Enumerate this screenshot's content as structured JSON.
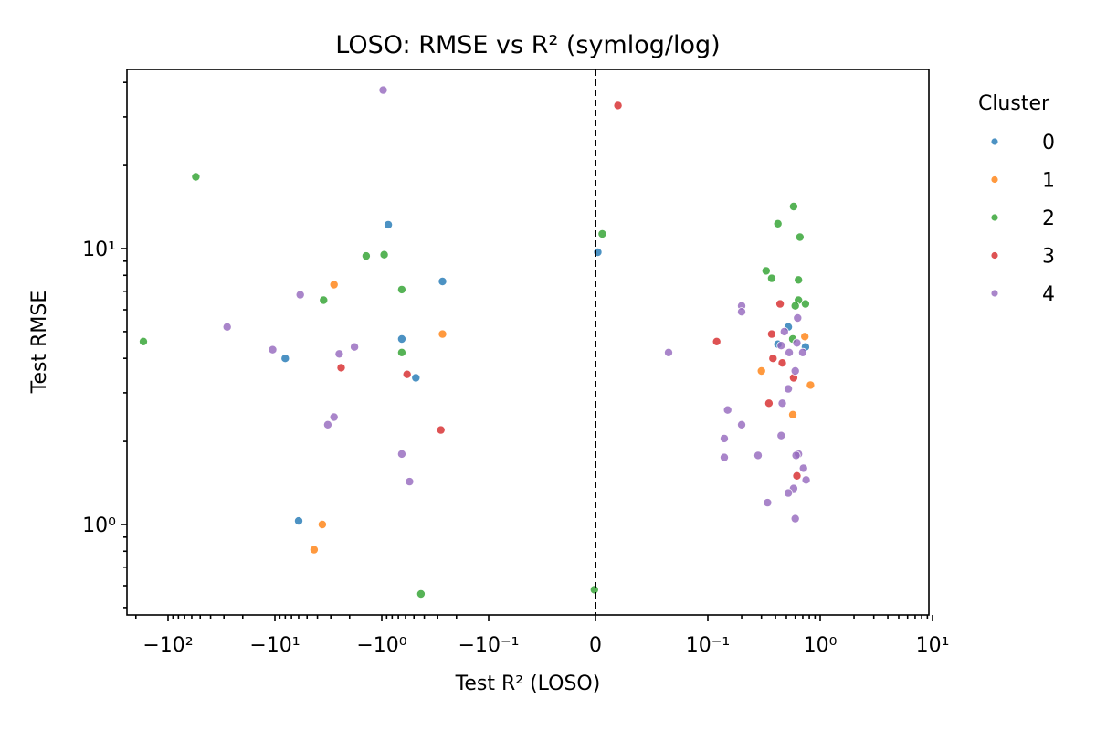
{
  "chart_data": {
    "type": "scatter",
    "title": "LOSO: RMSE vs R² (symlog/log)",
    "xlabel": "Test R² (LOSO)",
    "ylabel": "Test RMSE",
    "xscale": "symlog",
    "yscale": "log",
    "xlim": [
      -180,
      12
    ],
    "ylim": [
      0.47,
      42
    ],
    "x_ticks": [
      {
        "value": -100,
        "label": "−10²"
      },
      {
        "value": -10,
        "label": "−10¹"
      },
      {
        "value": -1,
        "label": "−10⁰"
      },
      {
        "value": -0.1,
        "label": "−10⁻¹"
      },
      {
        "value": 0,
        "label": "0"
      },
      {
        "value": 0.1,
        "label": "10⁻¹"
      },
      {
        "value": 1,
        "label": "10⁰"
      },
      {
        "value": 10,
        "label": "10¹"
      }
    ],
    "y_ticks": [
      {
        "value": 1,
        "label": "10⁰"
      },
      {
        "value": 10,
        "label": "10¹"
      }
    ],
    "reference_line": {
      "x": 0,
      "style": "dashed"
    },
    "grid": false,
    "legend": {
      "title": "Cluster",
      "placement": "outside-right"
    },
    "series": [
      {
        "name": "0",
        "color": "#1f77b4",
        "points": [
          [
            -0.87,
            12.2
          ],
          [
            -0.27,
            7.6
          ],
          [
            -0.65,
            4.7
          ],
          [
            -8.0,
            4.0
          ],
          [
            -0.48,
            3.4
          ],
          [
            -6.0,
            1.03
          ],
          [
            0.002,
            9.7
          ],
          [
            0.52,
            5.2
          ],
          [
            0.74,
            4.4
          ],
          [
            0.42,
            4.5
          ]
        ]
      },
      {
        "name": "1",
        "color": "#ff7f0e",
        "points": [
          [
            -2.8,
            7.4
          ],
          [
            -0.27,
            4.9
          ],
          [
            -3.6,
            1.0
          ],
          [
            -4.3,
            0.81
          ],
          [
            0.73,
            4.8
          ],
          [
            0.82,
            3.2
          ],
          [
            0.3,
            3.6
          ],
          [
            0.57,
            2.5
          ]
        ]
      },
      {
        "name": "2",
        "color": "#2ca02c",
        "points": [
          [
            -55,
            18.2
          ],
          [
            -170,
            4.6
          ],
          [
            -1.4,
            9.4
          ],
          [
            -0.95,
            9.5
          ],
          [
            -0.65,
            7.1
          ],
          [
            -3.5,
            6.5
          ],
          [
            -0.65,
            4.2
          ],
          [
            -0.43,
            0.56
          ],
          [
            0.006,
            11.3
          ],
          [
            -0.001,
            0.58
          ],
          [
            0.58,
            14.2
          ],
          [
            0.42,
            12.3
          ],
          [
            0.66,
            11.0
          ],
          [
            0.33,
            8.3
          ],
          [
            0.37,
            7.8
          ],
          [
            0.64,
            7.7
          ],
          [
            0.64,
            6.5
          ],
          [
            0.6,
            6.2
          ],
          [
            0.74,
            6.3
          ],
          [
            0.57,
            4.7
          ]
        ]
      },
      {
        "name": "3",
        "color": "#d62728",
        "points": [
          [
            0.02,
            33
          ],
          [
            -2.4,
            3.7
          ],
          [
            -0.58,
            3.5
          ],
          [
            -0.28,
            2.2
          ],
          [
            0.12,
            4.6
          ],
          [
            0.37,
            4.9
          ],
          [
            0.44,
            6.3
          ],
          [
            0.38,
            4.0
          ],
          [
            0.46,
            3.85
          ],
          [
            0.58,
            3.4
          ],
          [
            0.35,
            2.75
          ],
          [
            0.62,
            1.5
          ]
        ]
      },
      {
        "name": "4",
        "color": "#9467bd",
        "points": [
          [
            -0.97,
            37.5
          ],
          [
            -5.8,
            6.8
          ],
          [
            -28,
            5.2
          ],
          [
            -10.5,
            4.3
          ],
          [
            -2.5,
            4.15
          ],
          [
            -1.8,
            4.4
          ],
          [
            -3.2,
            2.3
          ],
          [
            -2.8,
            2.45
          ],
          [
            -0.65,
            1.8
          ],
          [
            -0.55,
            1.43
          ],
          [
            0.065,
            4.2
          ],
          [
            0.2,
            6.2
          ],
          [
            0.2,
            5.9
          ],
          [
            0.48,
            5.0
          ],
          [
            0.63,
            5.6
          ],
          [
            0.45,
            4.45
          ],
          [
            0.53,
            4.2
          ],
          [
            0.7,
            4.2
          ],
          [
            0.62,
            4.55
          ],
          [
            0.6,
            3.6
          ],
          [
            0.52,
            3.1
          ],
          [
            0.15,
            2.6
          ],
          [
            0.46,
            2.75
          ],
          [
            0.2,
            2.3
          ],
          [
            0.45,
            2.1
          ],
          [
            0.14,
            2.05
          ],
          [
            0.14,
            1.75
          ],
          [
            0.28,
            1.78
          ],
          [
            0.64,
            1.8
          ],
          [
            0.61,
            1.78
          ],
          [
            0.71,
            1.6
          ],
          [
            0.75,
            1.45
          ],
          [
            0.58,
            1.35
          ],
          [
            0.52,
            1.3
          ],
          [
            0.34,
            1.2
          ],
          [
            0.6,
            1.05
          ]
        ]
      }
    ]
  }
}
